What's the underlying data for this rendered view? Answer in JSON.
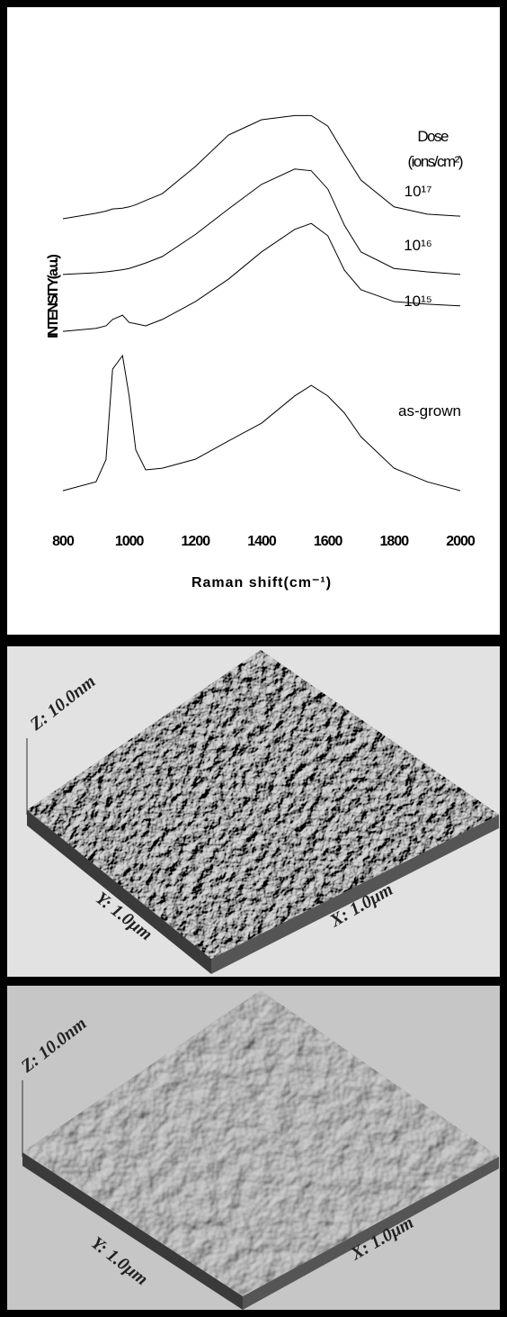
{
  "chart_data": {
    "type": "line",
    "x_label": "Raman shift(cm⁻¹)",
    "y_label": "INTENSITY(a.u.)",
    "legend_title": "Dose",
    "legend_subtitle": "(ions/cm²)",
    "x": [
      800,
      900,
      930,
      950,
      980,
      1000,
      1020,
      1050,
      1100,
      1200,
      1300,
      1400,
      1500,
      1550,
      1600,
      1650,
      1700,
      1800,
      1900,
      2000
    ],
    "series": [
      {
        "name": "10¹⁷",
        "color": "#000000",
        "values": [
          69.7,
          71,
          71.5,
          72,
          72.2,
          72.5,
          73,
          74,
          75.6,
          82,
          89.4,
          93,
          94,
          94,
          91.5,
          85,
          78.8,
          72.5,
          70.8,
          70.3
        ]
      },
      {
        "name": "10¹⁶",
        "color": "#000000",
        "values": [
          56.6,
          57,
          57.2,
          57.4,
          57.7,
          58,
          58.5,
          59.3,
          60.8,
          66,
          72,
          77.8,
          81.4,
          81,
          76.7,
          68.2,
          61.9,
          58,
          57.2,
          56.6
        ]
      },
      {
        "name": "10¹⁵",
        "color": "#000000",
        "values": [
          43.2,
          43.9,
          44.5,
          46,
          47,
          45.3,
          45,
          44.5,
          46,
          50.2,
          55.5,
          61.9,
          67.2,
          68.6,
          65.7,
          57.6,
          53,
          50.2,
          49.6,
          49.2
        ]
      },
      {
        "name": "as-grown",
        "color": "#000000",
        "values": [
          5.7,
          7.8,
          13,
          34.3,
          37.5,
          28,
          15.3,
          10.6,
          11,
          13.1,
          17.4,
          21.6,
          28,
          30.5,
          28,
          24,
          18.4,
          11,
          7.8,
          5.7
        ]
      }
    ],
    "xlim": [
      800,
      2000
    ],
    "xticks": [
      800,
      1000,
      1200,
      1400,
      1600,
      1800,
      2000
    ],
    "ylim": [
      0,
      100
    ],
    "grid": false
  },
  "afm_images": [
    {
      "z_label": "Z: 10.0nm",
      "y_label": "Y: 1.0μm",
      "x_label": "X: 1.0μm"
    },
    {
      "z_label": "Z: 10.0nm",
      "y_label": "Y: 1.0μm",
      "x_label": "X: 1.0μm"
    }
  ]
}
